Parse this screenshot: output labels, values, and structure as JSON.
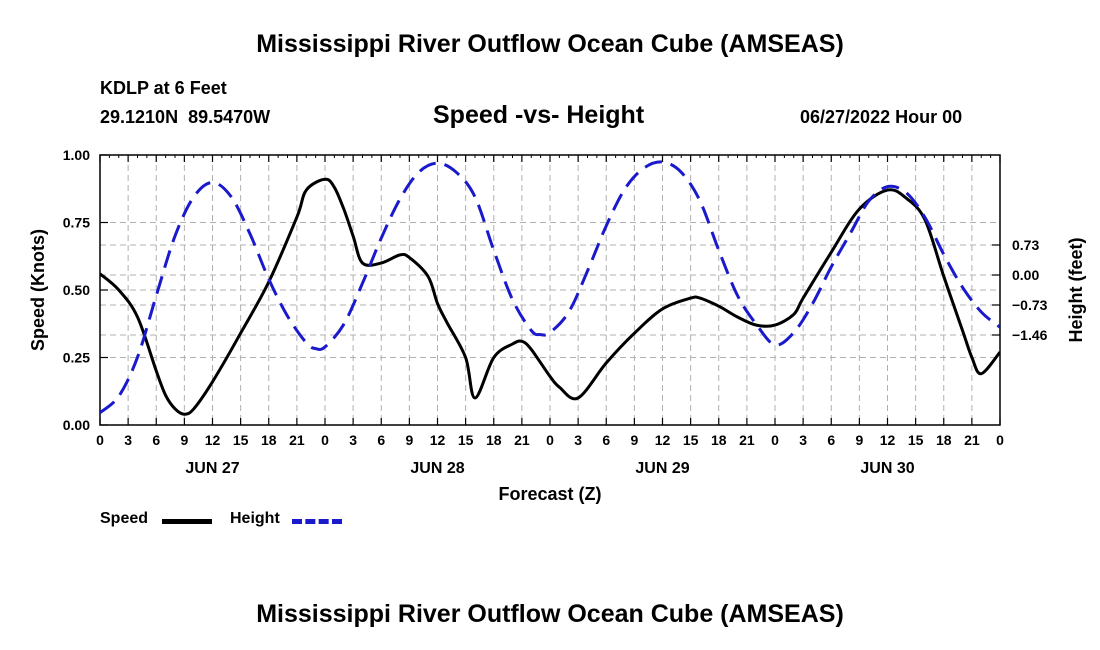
{
  "header": {
    "title": "Mississippi River Outflow Ocean Cube (AMSEAS)",
    "station": "KDLP at 6 Feet",
    "coords": "29.1210N  89.5470W",
    "subtitle": "Speed -vs- Height",
    "datetime": "06/27/2022 Hour 00"
  },
  "footer": {
    "title": "Mississippi River Outflow Ocean Cube (AMSEAS)"
  },
  "legend": {
    "speed_label": "Speed",
    "height_label": "Height"
  },
  "colors": {
    "speed": "#000000",
    "height": "#1a1acc",
    "grid": "#b0b0b0"
  },
  "chart_data": {
    "type": "line",
    "title": "Speed -vs- Height",
    "xlabel": "Forecast (Z)",
    "ylabel": "Speed (Knots)",
    "y2label": "Height (feet)",
    "xlim": [
      0,
      96
    ],
    "ylim": [
      0,
      1
    ],
    "y2lim": [
      -3.65,
      2.92
    ],
    "x_tick_labels": [
      "0",
      "3",
      "6",
      "9",
      "12",
      "15",
      "18",
      "21",
      "0",
      "3",
      "6",
      "9",
      "12",
      "15",
      "18",
      "21",
      "0",
      "3",
      "6",
      "9",
      "12",
      "15",
      "18",
      "21",
      "0",
      "3",
      "6",
      "9",
      "12",
      "15",
      "18",
      "21",
      "0"
    ],
    "day_labels": [
      {
        "label": "JUN 27",
        "x": 12
      },
      {
        "label": "JUN 28",
        "x": 36
      },
      {
        "label": "JUN 29",
        "x": 60
      },
      {
        "label": "JUN 30",
        "x": 84
      }
    ],
    "y_ticks": [
      0,
      0.25,
      0.5,
      0.75,
      1.0
    ],
    "y_tick_labels": [
      "0.00",
      "0.25",
      "0.50",
      "0.75",
      "1.00"
    ],
    "y2_ticks": [
      0.73,
      0,
      -0.73,
      -1.46
    ],
    "y2_tick_labels": [
      "0.73",
      "0.00",
      "−0.73",
      "−1.46"
    ],
    "series": [
      {
        "name": "Speed",
        "axis": "left",
        "style": "solid",
        "x": [
          0,
          2,
          4,
          6,
          7,
          8,
          9,
          10,
          12,
          15,
          18,
          21,
          22,
          24,
          25,
          26,
          27,
          28,
          30,
          32,
          33,
          35,
          36,
          37,
          39,
          40,
          42,
          44,
          45,
          46,
          48,
          49,
          51,
          54,
          57,
          60,
          63,
          64,
          66,
          68,
          70,
          72,
          74,
          75,
          78,
          81,
          84,
          86,
          88,
          90,
          92,
          93,
          94,
          96
        ],
        "y": [
          0.56,
          0.5,
          0.4,
          0.2,
          0.11,
          0.06,
          0.04,
          0.06,
          0.16,
          0.34,
          0.53,
          0.77,
          0.87,
          0.91,
          0.88,
          0.8,
          0.7,
          0.6,
          0.6,
          0.63,
          0.62,
          0.55,
          0.45,
          0.38,
          0.25,
          0.1,
          0.25,
          0.3,
          0.31,
          0.28,
          0.18,
          0.14,
          0.1,
          0.23,
          0.34,
          0.43,
          0.47,
          0.47,
          0.44,
          0.4,
          0.37,
          0.37,
          0.41,
          0.47,
          0.64,
          0.8,
          0.87,
          0.84,
          0.76,
          0.55,
          0.35,
          0.25,
          0.19,
          0.27
        ]
      },
      {
        "name": "Height",
        "axis": "right",
        "style": "dashed",
        "x": [
          0,
          2,
          4,
          6,
          8,
          10,
          12,
          14,
          16,
          18,
          20,
          22,
          23,
          24,
          26,
          28,
          30,
          32,
          34,
          36,
          38,
          40,
          42,
          44,
          46,
          47,
          48,
          50,
          52,
          54,
          56,
          58,
          60,
          62,
          64,
          66,
          68,
          70,
          72,
          74,
          76,
          78,
          80,
          82,
          84,
          86,
          88,
          90,
          92,
          94,
          96
        ],
        "y": [
          -3.35,
          -2.95,
          -2.0,
          -0.5,
          0.95,
          1.9,
          2.25,
          1.9,
          1.0,
          -0.1,
          -1.0,
          -1.65,
          -1.79,
          -1.75,
          -1.2,
          -0.2,
          0.9,
          1.85,
          2.5,
          2.72,
          2.5,
          1.9,
          0.6,
          -0.6,
          -1.35,
          -1.45,
          -1.4,
          -0.9,
          0.1,
          1.2,
          2.1,
          2.6,
          2.75,
          2.5,
          1.8,
          0.6,
          -0.5,
          -1.2,
          -1.7,
          -1.4,
          -0.7,
          0.2,
          1.0,
          1.8,
          2.15,
          2.0,
          1.4,
          0.5,
          -0.3,
          -0.9,
          -1.27
        ]
      }
    ]
  }
}
